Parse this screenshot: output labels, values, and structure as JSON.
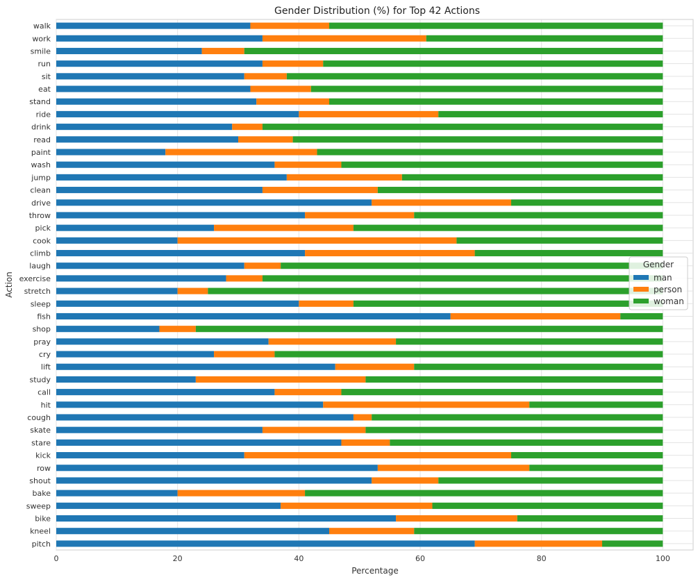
{
  "chart_data": {
    "type": "bar",
    "orientation": "horizontal",
    "stacked": true,
    "title": "Gender Distribution (%) for Top 42 Actions",
    "xlabel": "Percentage",
    "ylabel": "Action",
    "xlim": [
      0,
      105
    ],
    "xticks": [
      0,
      20,
      40,
      60,
      80,
      100
    ],
    "grid": true,
    "legend": {
      "title": "Gender",
      "placement": "center-right"
    },
    "colors": {
      "man": "#1f77b4",
      "person": "#ff7f0e",
      "woman": "#2ca02c"
    },
    "categories": [
      "walk",
      "work",
      "smile",
      "run",
      "sit",
      "eat",
      "stand",
      "ride",
      "drink",
      "read",
      "paint",
      "wash",
      "jump",
      "clean",
      "drive",
      "throw",
      "pick",
      "cook",
      "climb",
      "laugh",
      "exercise",
      "stretch",
      "sleep",
      "fish",
      "shop",
      "pray",
      "cry",
      "lift",
      "study",
      "call",
      "hit",
      "cough",
      "skate",
      "stare",
      "kick",
      "row",
      "shout",
      "bake",
      "sweep",
      "bike",
      "kneel",
      "pitch"
    ],
    "series": [
      {
        "name": "man",
        "values": [
          32,
          34,
          24,
          34,
          31,
          32,
          33,
          40,
          29,
          30,
          18,
          36,
          38,
          34,
          52,
          41,
          26,
          20,
          41,
          31,
          28,
          20,
          40,
          65,
          17,
          35,
          26,
          46,
          23,
          36,
          44,
          49,
          34,
          47,
          31,
          53,
          52,
          20,
          37,
          56,
          45,
          69
        ]
      },
      {
        "name": "person",
        "values": [
          13,
          27,
          7,
          10,
          7,
          10,
          12,
          23,
          5,
          9,
          25,
          11,
          19,
          19,
          23,
          18,
          23,
          46,
          28,
          6,
          6,
          5,
          9,
          28,
          6,
          21,
          10,
          13,
          28,
          11,
          34,
          3,
          17,
          8,
          44,
          25,
          11,
          21,
          25,
          20,
          14,
          21
        ]
      },
      {
        "name": "woman",
        "values": [
          55,
          39,
          69,
          56,
          62,
          58,
          55,
          37,
          66,
          61,
          57,
          53,
          43,
          47,
          25,
          41,
          51,
          34,
          31,
          63,
          66,
          75,
          51,
          7,
          77,
          44,
          64,
          41,
          49,
          53,
          22,
          48,
          49,
          45,
          25,
          22,
          37,
          59,
          38,
          24,
          41,
          10
        ]
      }
    ]
  }
}
